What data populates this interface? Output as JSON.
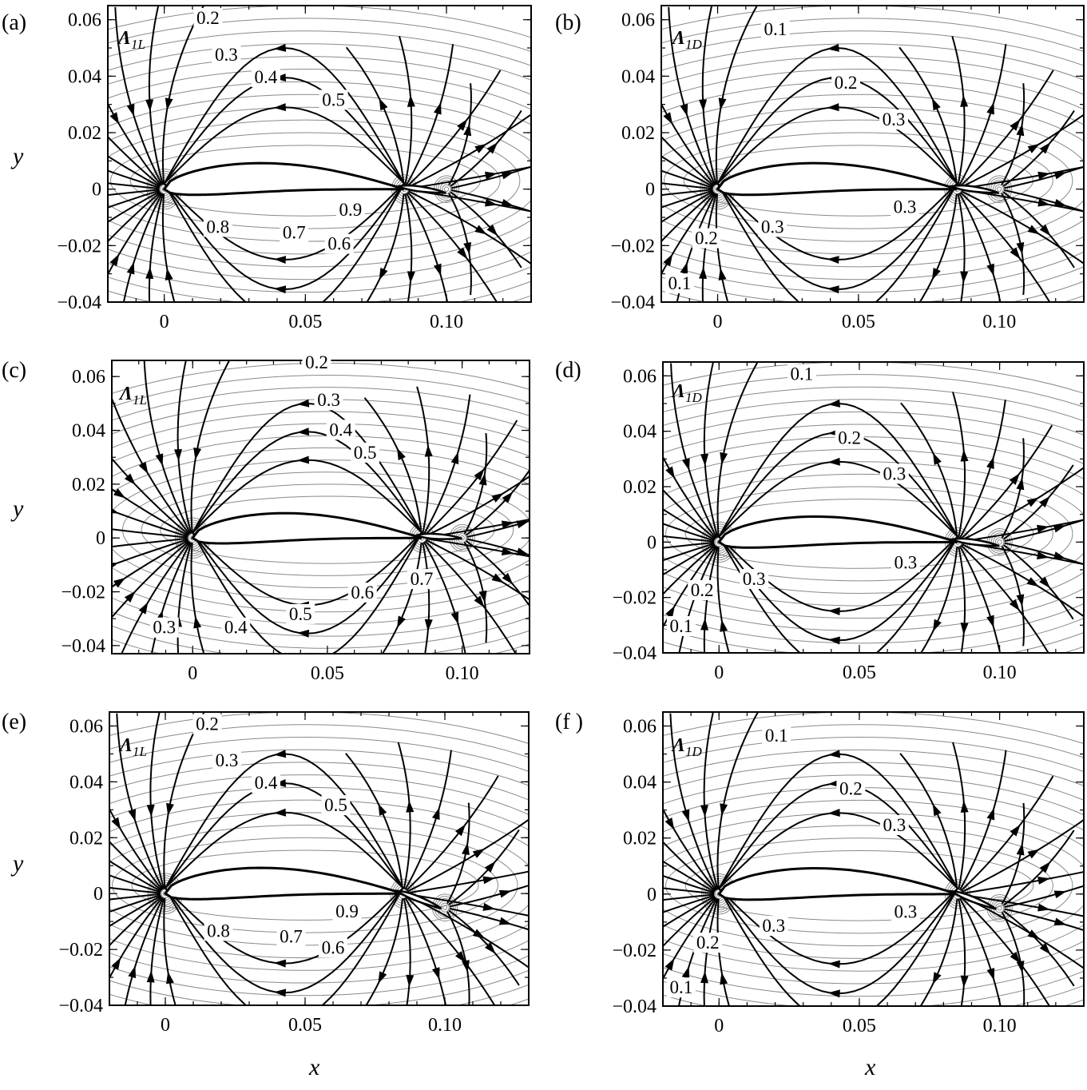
{
  "figure": {
    "xlabel": "x",
    "ylabel": "y"
  },
  "chart_data": [
    {
      "type": "contour",
      "panel": "(a)",
      "series_label": "Λ1L",
      "series_label_main": "Λ",
      "series_label_sub": "1L",
      "xlabel": "x",
      "ylabel": "y",
      "xlim": [
        -0.02,
        0.13
      ],
      "ylim": [
        -0.04,
        0.065
      ],
      "xticks": [
        {
          "v": 0,
          "label": "0"
        },
        {
          "v": 0.05,
          "label": "0.05"
        },
        {
          "v": 0.1,
          "label": "0.10"
        }
      ],
      "yticks": [
        {
          "v": -0.04,
          "label": "−0.04"
        },
        {
          "v": -0.02,
          "label": "−0.02"
        },
        {
          "v": 0,
          "label": "0"
        },
        {
          "v": 0.02,
          "label": "0.02"
        },
        {
          "v": 0.04,
          "label": "0.04"
        },
        {
          "v": 0.06,
          "label": "0.06"
        }
      ],
      "contour_labels": [
        {
          "text": "0.2",
          "x": 0.0155,
          "y": 0.0585
        },
        {
          "text": "0.3",
          "x": 0.022,
          "y": 0.0455
        },
        {
          "text": "0.4",
          "x": 0.036,
          "y": 0.0375
        },
        {
          "text": "0.5",
          "x": 0.06,
          "y": 0.0295
        },
        {
          "text": "0.9",
          "x": 0.066,
          "y": -0.0095
        },
        {
          "text": "0.8",
          "x": 0.019,
          "y": -0.0155
        },
        {
          "text": "0.7",
          "x": 0.046,
          "y": -0.0175
        },
        {
          "text": "0.6",
          "x": 0.062,
          "y": -0.0215
        }
      ],
      "grid": false,
      "legend": "none"
    },
    {
      "type": "contour",
      "panel": "(b)",
      "series_label": "Λ1D",
      "series_label_main": "Λ",
      "series_label_sub": "1D",
      "xlabel": "x",
      "ylabel": "y",
      "xlim": [
        -0.02,
        0.13
      ],
      "ylim": [
        -0.04,
        0.065
      ],
      "xticks": [
        {
          "v": 0,
          "label": "0"
        },
        {
          "v": 0.05,
          "label": "0.05"
        },
        {
          "v": 0.1,
          "label": "0.10"
        }
      ],
      "yticks": [
        {
          "v": -0.04,
          "label": "−0.04"
        },
        {
          "v": -0.02,
          "label": "−0.02"
        },
        {
          "v": 0,
          "label": "0"
        },
        {
          "v": 0.02,
          "label": "0.02"
        },
        {
          "v": 0.04,
          "label": "0.04"
        },
        {
          "v": 0.06,
          "label": "0.06"
        }
      ],
      "contour_labels": [
        {
          "text": "0.1",
          "x": 0.0205,
          "y": 0.0545
        },
        {
          "text": "0.2",
          "x": 0.0455,
          "y": 0.0355
        },
        {
          "text": "0.3",
          "x": 0.0625,
          "y": 0.0225
        },
        {
          "text": "0.3",
          "x": 0.0665,
          "y": -0.0085
        },
        {
          "text": "0.3",
          "x": 0.0195,
          "y": -0.0155
        },
        {
          "text": "0.2",
          "x": -0.004,
          "y": -0.0195
        },
        {
          "text": "0.1",
          "x": -0.0135,
          "y": -0.0355
        }
      ],
      "grid": false,
      "legend": "none"
    },
    {
      "type": "contour",
      "panel": "(c)",
      "series_label": "Λ1L",
      "series_label_main": "Λ",
      "series_label_sub": "1L",
      "xlabel": "x",
      "ylabel": "y",
      "xlim": [
        -0.03,
        0.125
      ],
      "ylim": [
        -0.043,
        0.066
      ],
      "xticks": [
        {
          "v": 0,
          "label": "0"
        },
        {
          "v": 0.05,
          "label": "0.05"
        },
        {
          "v": 0.1,
          "label": "0.10"
        }
      ],
      "yticks": [
        {
          "v": -0.04,
          "label": "−0.04"
        },
        {
          "v": -0.02,
          "label": "−0.02"
        },
        {
          "v": 0,
          "label": "0"
        },
        {
          "v": 0.02,
          "label": "0.02"
        },
        {
          "v": 0.04,
          "label": "0.04"
        },
        {
          "v": 0.06,
          "label": "0.06"
        }
      ],
      "contour_labels": [
        {
          "text": "0.2",
          "x": 0.046,
          "y": 0.063
        },
        {
          "text": "0.3",
          "x": 0.0505,
          "y": 0.049
        },
        {
          "text": "0.4",
          "x": 0.055,
          "y": 0.038
        },
        {
          "text": "0.5",
          "x": 0.064,
          "y": 0.0295
        },
        {
          "text": "0.7",
          "x": 0.085,
          "y": -0.0175
        },
        {
          "text": "0.6",
          "x": 0.063,
          "y": -0.0225
        },
        {
          "text": "0.5",
          "x": 0.04,
          "y": -0.0305
        },
        {
          "text": "0.3",
          "x": -0.0105,
          "y": -0.0355
        },
        {
          "text": "0.4",
          "x": 0.016,
          "y": -0.0355
        }
      ],
      "grid": false,
      "legend": "none"
    },
    {
      "type": "contour",
      "panel": "(d)",
      "series_label": "Λ1D",
      "series_label_main": "Λ",
      "series_label_sub": "1D",
      "xlabel": "x",
      "ylabel": "y",
      "xlim": [
        -0.02,
        0.13
      ],
      "ylim": [
        -0.04,
        0.065
      ],
      "xticks": [
        {
          "v": 0,
          "label": "0"
        },
        {
          "v": 0.05,
          "label": "0.05"
        },
        {
          "v": 0.1,
          "label": "0.10"
        }
      ],
      "yticks": [
        {
          "v": -0.04,
          "label": "−0.04"
        },
        {
          "v": -0.02,
          "label": "−0.02"
        },
        {
          "v": 0,
          "label": "0"
        },
        {
          "v": 0.02,
          "label": "0.02"
        },
        {
          "v": 0.04,
          "label": "0.04"
        },
        {
          "v": 0.06,
          "label": "0.06"
        }
      ],
      "contour_labels": [
        {
          "text": "0.1",
          "x": 0.0295,
          "y": 0.0585
        },
        {
          "text": "0.2",
          "x": 0.0465,
          "y": 0.0355
        },
        {
          "text": "0.3",
          "x": 0.0625,
          "y": 0.0225
        },
        {
          "text": "0.3",
          "x": 0.0665,
          "y": -0.0095
        },
        {
          "text": "0.3",
          "x": 0.0125,
          "y": -0.0155
        },
        {
          "text": "0.2",
          "x": -0.006,
          "y": -0.0195
        },
        {
          "text": "0.1",
          "x": -0.0135,
          "y": -0.0325
        }
      ],
      "grid": false,
      "legend": "none"
    },
    {
      "type": "contour",
      "panel": "(e)",
      "series_label": "Λ1L",
      "series_label_main": "Λ",
      "series_label_sub": "1L",
      "xlabel": "x",
      "ylabel": "y",
      "xlim": [
        -0.02,
        0.13
      ],
      "ylim": [
        -0.04,
        0.065
      ],
      "xticks": [
        {
          "v": 0,
          "label": "0"
        },
        {
          "v": 0.05,
          "label": "0.05"
        },
        {
          "v": 0.1,
          "label": "0.10"
        }
      ],
      "yticks": [
        {
          "v": -0.04,
          "label": "−0.04"
        },
        {
          "v": -0.02,
          "label": "−0.02"
        },
        {
          "v": 0,
          "label": "0"
        },
        {
          "v": 0.02,
          "label": "0.02"
        },
        {
          "v": 0.04,
          "label": "0.04"
        },
        {
          "v": 0.06,
          "label": "0.06"
        }
      ],
      "contour_labels": [
        {
          "text": "0.2",
          "x": 0.015,
          "y": 0.0585
        },
        {
          "text": "0.3",
          "x": 0.022,
          "y": 0.0455
        },
        {
          "text": "0.4",
          "x": 0.036,
          "y": 0.0375
        },
        {
          "text": "0.5",
          "x": 0.061,
          "y": 0.0295
        },
        {
          "text": "0.9",
          "x": 0.065,
          "y": -0.0085
        },
        {
          "text": "0.8",
          "x": 0.019,
          "y": -0.0155
        },
        {
          "text": "0.7",
          "x": 0.045,
          "y": -0.0175
        },
        {
          "text": "0.6",
          "x": 0.06,
          "y": -0.0215
        }
      ],
      "grid": false,
      "legend": "none"
    },
    {
      "type": "contour",
      "panel": "(f )",
      "series_label": "Λ1D",
      "series_label_main": "Λ",
      "series_label_sub": "1D",
      "xlabel": "x",
      "ylabel": "y",
      "xlim": [
        -0.02,
        0.13
      ],
      "ylim": [
        -0.04,
        0.065
      ],
      "xticks": [
        {
          "v": 0,
          "label": "0"
        },
        {
          "v": 0.05,
          "label": "0.05"
        },
        {
          "v": 0.1,
          "label": "0.10"
        }
      ],
      "yticks": [
        {
          "v": -0.04,
          "label": "−0.04"
        },
        {
          "v": -0.02,
          "label": "−0.02"
        },
        {
          "v": 0,
          "label": "0"
        },
        {
          "v": 0.02,
          "label": "0.02"
        },
        {
          "v": 0.04,
          "label": "0.04"
        },
        {
          "v": 0.06,
          "label": "0.06"
        }
      ],
      "contour_labels": [
        {
          "text": "0.1",
          "x": 0.0205,
          "y": 0.0545
        },
        {
          "text": "0.2",
          "x": 0.047,
          "y": 0.0355
        },
        {
          "text": "0.3",
          "x": 0.0625,
          "y": 0.0225
        },
        {
          "text": "0.3",
          "x": 0.0665,
          "y": -0.0085
        },
        {
          "text": "0.3",
          "x": 0.0195,
          "y": -0.0135
        },
        {
          "text": "0.2",
          "x": -0.004,
          "y": -0.0195
        },
        {
          "text": "0.1",
          "x": -0.0135,
          "y": -0.0355
        }
      ],
      "grid": false,
      "legend": "none"
    }
  ]
}
